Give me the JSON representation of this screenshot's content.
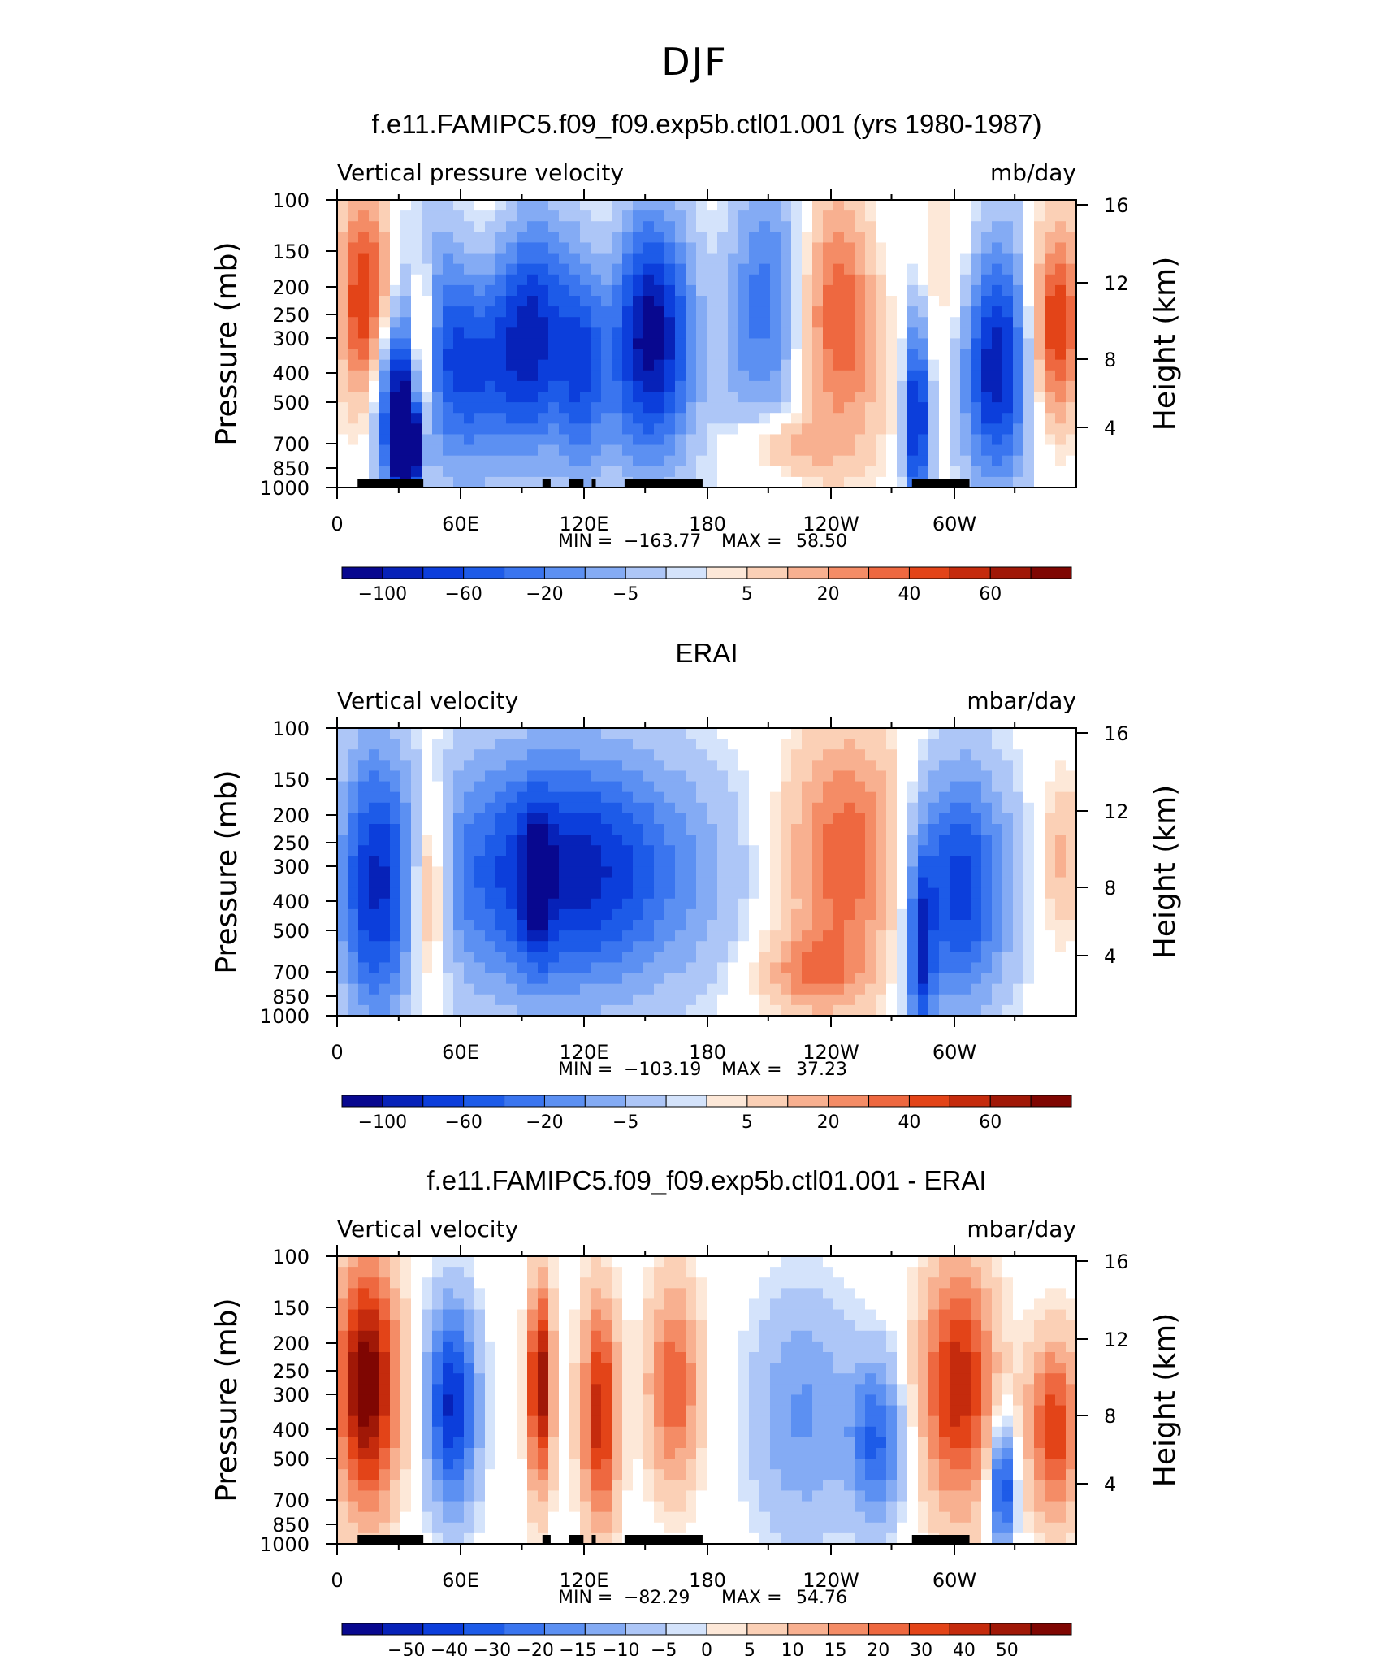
{
  "figure": {
    "season": "DJF"
  },
  "colors": {
    "blues": [
      "#08088f",
      "#0722b8",
      "#0c3edb",
      "#1d5be8",
      "#3a75ef",
      "#5c90f2",
      "#84abf4",
      "#adc6f7",
      "#d4e3fb"
    ],
    "reds": [
      "#fde8d8",
      "#fbd0b6",
      "#f8b090",
      "#f48c66",
      "#ee6840",
      "#e34418",
      "#c52b0d",
      "#a01807",
      "#7f0602"
    ]
  },
  "chart_data": [
    {
      "type": "heatmap",
      "title": "f.e11.FAMIPC5.f09_f09.exp5b.ctl01.001 (yrs 1980-1987)",
      "variable": "Vertical pressure velocity",
      "units": "mb/day",
      "ylabel": "Pressure (mb)",
      "y2label": "Height (km)",
      "x_ticks": [
        "0",
        "60E",
        "120E",
        "180",
        "120W",
        "60W"
      ],
      "y_ticks": [
        "100",
        "150",
        "200",
        "250",
        "300",
        "400",
        "500",
        "700",
        "850",
        "1000"
      ],
      "y2_ticks": [
        "16",
        "12",
        "8",
        "4"
      ],
      "stats": {
        "min_label": "MIN =",
        "min": "−163.77",
        "max_label": "MAX =",
        "max": "58.50"
      },
      "colorbar_labels": [
        "−100",
        "−60",
        "−20",
        "−5",
        "5",
        "20",
        "40",
        "60"
      ],
      "ylim": [
        1000,
        100
      ],
      "xlim_deg": [
        0,
        360
      ],
      "topography_mask": [
        [
          10,
          42
        ],
        [
          100,
          104
        ],
        [
          113,
          120
        ],
        [
          124,
          126
        ],
        [
          140,
          178
        ],
        [
          280,
          308
        ]
      ]
    },
    {
      "type": "heatmap",
      "title": "ERAI",
      "variable": "Vertical velocity",
      "units": "mbar/day",
      "ylabel": "Pressure (mb)",
      "y2label": "Height (km)",
      "x_ticks": [
        "0",
        "60E",
        "120E",
        "180",
        "120W",
        "60W"
      ],
      "y_ticks": [
        "100",
        "150",
        "200",
        "250",
        "300",
        "400",
        "500",
        "700",
        "850",
        "1000"
      ],
      "y2_ticks": [
        "16",
        "12",
        "8",
        "4"
      ],
      "stats": {
        "min_label": "MIN =",
        "min": "−103.19",
        "max_label": "MAX =",
        "max": "37.23"
      },
      "colorbar_labels": [
        "−100",
        "−60",
        "−20",
        "−5",
        "5",
        "20",
        "40",
        "60"
      ],
      "ylim": [
        1000,
        100
      ],
      "xlim_deg": [
        0,
        360
      ],
      "topography_mask": []
    },
    {
      "type": "heatmap",
      "title": "f.e11.FAMIPC5.f09_f09.exp5b.ctl01.001 - ERAI",
      "variable": "Vertical velocity",
      "units": "mbar/day",
      "ylabel": "Pressure (mb)",
      "y2label": "Height (km)",
      "x_ticks": [
        "0",
        "60E",
        "120E",
        "180",
        "120W",
        "60W"
      ],
      "y_ticks": [
        "100",
        "150",
        "200",
        "250",
        "300",
        "400",
        "500",
        "700",
        "850",
        "1000"
      ],
      "y2_ticks": [
        "16",
        "12",
        "8",
        "4"
      ],
      "stats": {
        "min_label": "MIN =",
        "min": "−82.29",
        "max_label": "MAX =",
        "max": "54.76"
      },
      "colorbar_labels": [
        "−50",
        "−40",
        "−30",
        "−20",
        "−15",
        "−10",
        "−5",
        "0",
        "5",
        "10",
        "15",
        "20",
        "30",
        "40",
        "50"
      ],
      "ylim": [
        1000,
        100
      ],
      "xlim_deg": [
        0,
        360
      ],
      "topography_mask": [
        [
          10,
          42
        ],
        [
          100,
          104
        ],
        [
          113,
          120
        ],
        [
          124,
          126
        ],
        [
          140,
          178
        ],
        [
          280,
          308
        ]
      ]
    }
  ]
}
